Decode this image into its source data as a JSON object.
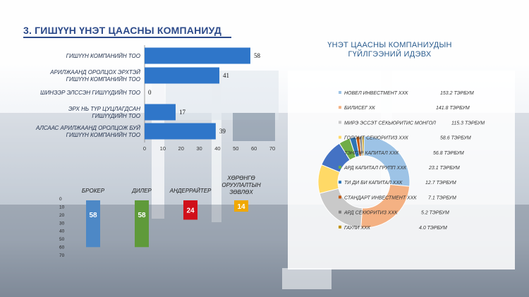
{
  "title": "3. ГИШҮҮН ҮНЭТ ЦААСНЫ КОМПАНИУД",
  "colors": {
    "title": "#2c4a8a",
    "hbar": "#2f76c9",
    "broker": "#4d88c6",
    "dealer": "#5f9a3a",
    "underwriter": "#d0101a",
    "advisor": "#f0a800"
  },
  "chart_data": [
    {
      "type": "bar",
      "orientation": "horizontal",
      "categories": [
        [
          "ГИШҮҮН КОМПАНИЙН ТОО"
        ],
        [
          "АРИЛЖААНД ОРОЛЦОХ ЭРХТЭЙ",
          "ГИШҮҮН КОМПАНИЙН ТОО"
        ],
        [
          "ШИНЭЭР ЭЛССЭН ГИШҮҮДИЙН ТОО"
        ],
        [
          "ЭРХ НЬ ТҮР ЦУЦЛАГДСАН",
          "ГИШҮҮДИЙН ТОО"
        ],
        [
          "АЛСААС АРИЛЖААНД ОРОЛЦОЖ БУЙ",
          "ГИШҮҮН КОМПАНИЙН ТОО"
        ]
      ],
      "values": [
        58,
        41,
        0,
        17,
        39
      ],
      "xticks": [
        "0",
        "10",
        "20",
        "30",
        "40",
        "50",
        "60",
        "70"
      ],
      "xlim": [
        0,
        70
      ]
    },
    {
      "type": "bar",
      "orientation": "vertical",
      "categories": [
        "БРОКЕР",
        "ДИЛЕР",
        "АНДЕРРАЙТЕР",
        [
          "ХӨРӨНГӨ",
          "ОРУУЛАЛТЫН",
          "ЗӨВЛӨХ"
        ]
      ],
      "values": [
        58,
        58,
        24,
        14
      ],
      "yticks": [
        "0",
        "10",
        "20",
        "30",
        "40",
        "50",
        "60",
        "70"
      ],
      "ylim": [
        0,
        70
      ]
    },
    {
      "type": "pie",
      "title": [
        "ҮНЭТ ЦААСНЫ КОМПАНИУДЫН",
        "ГҮЙЛГЭЭНИЙ ИДЭВХ"
      ],
      "donut": true,
      "labels": [
        "НОВЕЛ ИНВЕСТМЕНТ ХХК",
        "БИЛИСЕГ ХК",
        "МИРЭ ЭССЭТ СЕКЬЮРИТИС МОНГОЛ",
        "ГОЛОМТ СЕКЮРИТИЗ ХХК",
        "ТЭНГЭР КАПИТАЛ ХХК",
        "АРД КАПИТАЛ ГРУПП ХХК",
        "ТИ ДИ БИ КАПИТАЛ ХХК",
        "СТАНДАРТ ИНВЕСТМЕНТ ХХК",
        "АРД СЕКЮРИТИЗ ХХК",
        "ГАУЛИ ХХК"
      ],
      "value_labels": [
        "153.2 ТЭРБУМ",
        "141.8 ТЭРБУМ",
        "115.3 ТЭРБУМ",
        "58.6 ТЭРБУМ",
        "56.8 ТЭРБУМ",
        "23.1 ТЭРБУМ",
        "12.7 ТЭРБУМ",
        "7.1 ТЭРБУМ",
        "5.2 ТЭРБУМ",
        "4.0 ТЭРБУМ"
      ],
      "values": [
        153.2,
        141.8,
        115.3,
        58.6,
        56.8,
        23.1,
        12.7,
        7.1,
        5.2,
        4.0
      ],
      "colors": [
        "#9dc3e6",
        "#f4b183",
        "#c9c9c9",
        "#ffd966",
        "#4472c4",
        "#70ad47",
        "#2e75b6",
        "#c55a11",
        "#7f7f7f",
        "#bf9000"
      ],
      "legend": "inside-left"
    }
  ]
}
